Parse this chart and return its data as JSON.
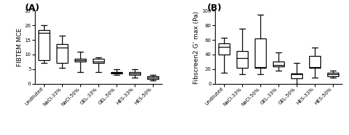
{
  "panel_A": {
    "label": "(A)",
    "ylabel": "FIBTEM MCE",
    "ylim": [
      0,
      25
    ],
    "yticks": [
      0,
      5,
      10,
      15,
      20,
      25
    ],
    "categories": [
      "Undiluted",
      "NaCl-33%",
      "NaCl-50%",
      "GEL-33%",
      "GEL-50%",
      "HES-33%",
      "HES-50%"
    ],
    "boxes": [
      {
        "whislo": 7.0,
        "q1": 8.0,
        "med": 17.5,
        "q3": 18.5,
        "whishi": 20.0
      },
      {
        "whislo": 5.5,
        "q1": 7.0,
        "med": 12.5,
        "q3": 13.5,
        "whishi": 16.5
      },
      {
        "whislo": 4.0,
        "q1": 7.5,
        "med": 8.0,
        "q3": 8.5,
        "whishi": 11.0
      },
      {
        "whislo": 4.0,
        "q1": 7.0,
        "med": 7.5,
        "q3": 8.5,
        "whishi": 9.0
      },
      {
        "whislo": 3.0,
        "q1": 3.5,
        "med": 3.8,
        "q3": 4.0,
        "whishi": 5.0
      },
      {
        "whislo": 2.0,
        "q1": 3.0,
        "med": 3.5,
        "q3": 4.0,
        "whishi": 5.0
      },
      {
        "whislo": 1.0,
        "q1": 1.5,
        "med": 2.0,
        "q3": 2.5,
        "whishi": 3.0
      }
    ]
  },
  "panel_B": {
    "label": "(B)",
    "ylabel": "Fibscreen2 G’ max (Pa)",
    "ylim": [
      0,
      100
    ],
    "yticks": [
      0,
      20,
      40,
      60,
      80,
      100
    ],
    "categories": [
      "Undiluted",
      "NaCl-33%",
      "NaCl-50%",
      "GEL-33%",
      "GEL-50%",
      "HES-33%",
      "HES-50%"
    ],
    "boxes": [
      {
        "whislo": 15.0,
        "q1": 40.0,
        "med": 51.0,
        "q3": 55.0,
        "whishi": 63.0
      },
      {
        "whislo": 13.0,
        "q1": 22.0,
        "med": 35.0,
        "q3": 45.0,
        "whishi": 75.0
      },
      {
        "whislo": 13.0,
        "q1": 22.0,
        "med": 23.0,
        "q3": 62.0,
        "whishi": 95.0
      },
      {
        "whislo": 18.0,
        "q1": 24.0,
        "med": 26.0,
        "q3": 30.0,
        "whishi": 43.0
      },
      {
        "whislo": 0.0,
        "q1": 7.0,
        "med": 13.0,
        "q3": 14.0,
        "whishi": 28.0
      },
      {
        "whislo": 8.0,
        "q1": 22.0,
        "med": 23.0,
        "q3": 38.0,
        "whishi": 50.0
      },
      {
        "whislo": 8.0,
        "q1": 10.0,
        "med": 13.0,
        "q3": 15.0,
        "whishi": 18.0
      }
    ]
  },
  "box_color": "#ffffff",
  "box_edgecolor": "#000000",
  "median_color": "#000000",
  "whisker_color": "#000000",
  "cap_color": "#000000",
  "linewidth": 0.9,
  "box_width": 0.6,
  "figsize": [
    5.0,
    1.93
  ],
  "dpi": 100,
  "label_fontsize": 8,
  "tick_fontsize": 5,
  "ylabel_fontsize": 6.5,
  "panel_label_fontsize": 9
}
